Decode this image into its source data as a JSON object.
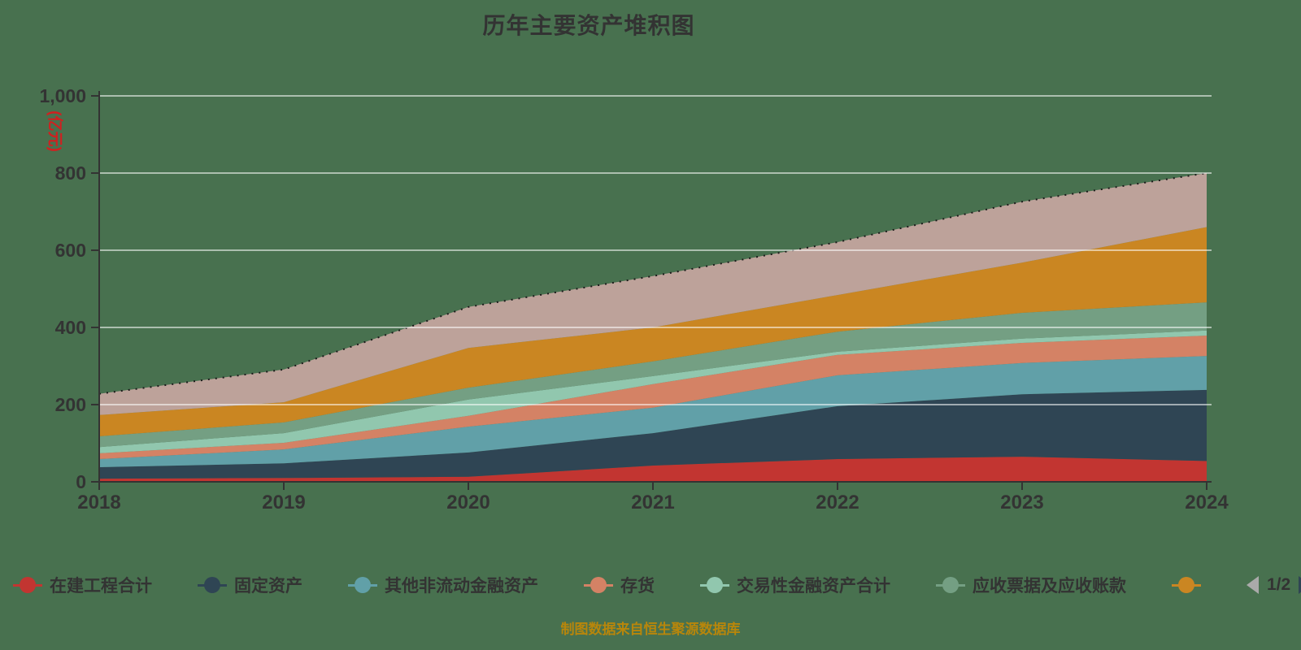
{
  "title": "历年主要资产堆积图",
  "footer": "制图数据来自恒生聚源数据库",
  "colors": {
    "background": "#48714f",
    "title": "#333333",
    "axis": "#333333",
    "tick_label": "#333333",
    "grid": "rgba(255,255,255,0.55)",
    "unit_label": "#d21f1f",
    "legend_text": "#333333",
    "footer": "#b8860b",
    "pager_active": "#2f4554",
    "pager_inactive": "#aaaaaa",
    "stack_top_line": "#1a1a1a"
  },
  "chart_data": {
    "type": "area",
    "stacked": true,
    "title": "历年主要资产堆积图",
    "ylabel": "(亿元)",
    "xlabel": "",
    "ylim": [
      0,
      1000
    ],
    "grid": true,
    "legend_position": "bottom",
    "x": [
      "2018",
      "2019",
      "2020",
      "2021",
      "2022",
      "2023",
      "2024"
    ],
    "yticks": [
      {
        "value": 0,
        "label": "0"
      },
      {
        "value": 200,
        "label": "200"
      },
      {
        "value": 400,
        "label": "400"
      },
      {
        "value": 600,
        "label": "600"
      },
      {
        "value": 800,
        "label": "800"
      },
      {
        "value": 1000,
        "label": "1,000"
      }
    ],
    "series": [
      {
        "name": "在建工程合计",
        "color": "#c23531",
        "values": [
          8,
          10,
          13,
          42,
          59,
          65,
          54
        ]
      },
      {
        "name": "固定资产",
        "color": "#2f4554",
        "values": [
          30,
          38,
          63,
          84,
          137,
          162,
          184
        ]
      },
      {
        "name": "其他非流动金融资产",
        "color": "#61a0a8",
        "values": [
          21,
          36,
          67,
          66,
          80,
          81,
          88
        ]
      },
      {
        "name": "存货",
        "color": "#d48265",
        "values": [
          15,
          17,
          28,
          61,
          53,
          52,
          53
        ]
      },
      {
        "name": "交易性金融资产合计",
        "color": "#91c7ae",
        "values": [
          16,
          25,
          42,
          21,
          8,
          11,
          13
        ]
      },
      {
        "name": "应收票据及应收账款",
        "color": "#749f83",
        "values": [
          28,
          28,
          31,
          38,
          52,
          67,
          73
        ]
      },
      {
        "name": "",
        "color": "#ca8622",
        "values": [
          55,
          52,
          103,
          88,
          95,
          130,
          195
        ]
      },
      {
        "name": "",
        "color": "#bda29a",
        "values": [
          55,
          85,
          106,
          133,
          137,
          158,
          140
        ]
      }
    ]
  },
  "legend": {
    "visible_items": [
      {
        "label": "在建工程合计",
        "color": "#c23531"
      },
      {
        "label": "固定资产",
        "color": "#2f4554"
      },
      {
        "label": "其他非流动金融资产",
        "color": "#61a0a8"
      },
      {
        "label": "存货",
        "color": "#d48265"
      },
      {
        "label": "交易性金融资产合计",
        "color": "#91c7ae"
      },
      {
        "label": "应收票据及应收账款",
        "color": "#749f83"
      },
      {
        "label": "",
        "color": "#ca8622"
      }
    ],
    "pager": {
      "label": "1/2"
    }
  }
}
